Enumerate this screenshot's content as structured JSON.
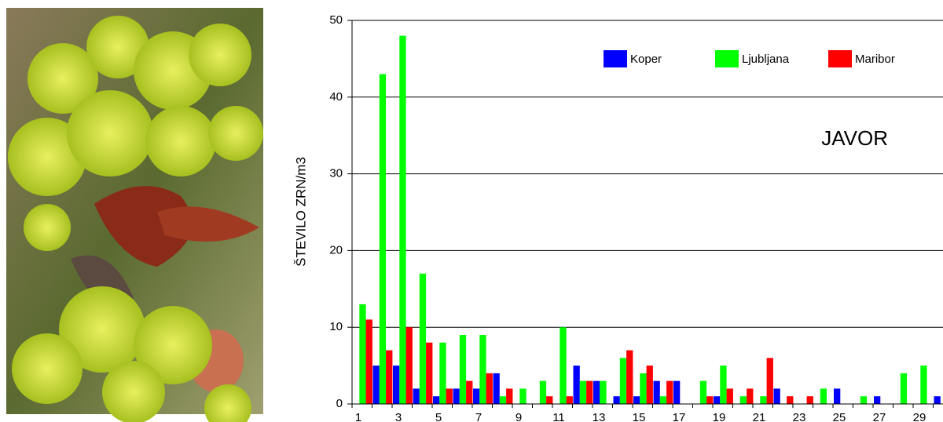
{
  "chart_data": {
    "type": "bar",
    "annotation": "JAVOR",
    "ylabel": "ŠTEVILO ZRN/m3",
    "categories": [
      "1",
      null,
      "3",
      null,
      "5",
      null,
      "7",
      null,
      "9",
      null,
      "11",
      null,
      "13",
      null,
      "15",
      null,
      "17",
      null,
      "19",
      null,
      "21",
      null,
      "23",
      null,
      "25",
      null,
      "27",
      null,
      "29",
      null
    ],
    "series": [
      {
        "name": "Koper",
        "color": "#0000ff",
        "values": [
          0,
          5,
          5,
          2,
          1,
          2,
          2,
          4,
          0,
          0,
          0,
          5,
          3,
          1,
          1,
          3,
          3,
          0,
          1,
          0,
          0,
          2,
          0,
          0,
          2,
          0,
          1,
          0,
          0,
          1
        ]
      },
      {
        "name": "Ljubljana",
        "color": "#00ff00",
        "values": [
          13,
          43,
          48,
          17,
          8,
          9,
          9,
          1,
          2,
          3,
          10,
          3,
          3,
          6,
          4,
          1,
          0,
          3,
          5,
          1,
          1,
          0,
          0,
          2,
          0,
          1,
          0,
          4,
          5,
          0
        ]
      },
      {
        "name": "Maribor",
        "color": "#ff0000",
        "values": [
          11,
          7,
          10,
          8,
          2,
          3,
          4,
          2,
          0,
          1,
          1,
          3,
          0,
          7,
          5,
          3,
          0,
          1,
          2,
          2,
          6,
          1,
          1,
          0,
          0,
          0,
          0,
          0,
          0,
          0
        ]
      }
    ],
    "ylim": [
      0,
      50
    ],
    "yticks": [
      0,
      10,
      20,
      30,
      40,
      50
    ],
    "grid": true,
    "legend": "top-right"
  }
}
